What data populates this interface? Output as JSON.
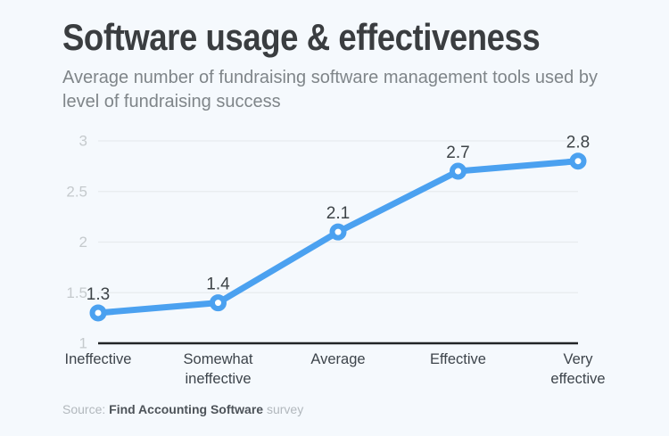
{
  "page": {
    "background": "#f5f9fd"
  },
  "header": {
    "title": "Software usage & effectiveness",
    "subtitle": "Average number of fundraising software management tools used by level of fundraising success"
  },
  "source": {
    "prefix": "Source:",
    "name": "Find Accounting Software",
    "suffix": "survey"
  },
  "chart_data": {
    "type": "line",
    "title": "Software usage & effectiveness",
    "categories": [
      "Ineffective",
      "Somewhat ineffective",
      "Average",
      "Effective",
      "Very effective"
    ],
    "values": [
      1.3,
      1.4,
      2.1,
      2.7,
      2.8
    ],
    "data_labels": [
      "1.3",
      "1.4",
      "2.1",
      "2.7",
      "2.8"
    ],
    "y_ticks": [
      "1",
      "1.5",
      "2",
      "2.5",
      "3"
    ],
    "y_tick_values": [
      1,
      1.5,
      2,
      2.5,
      3
    ],
    "ylim": [
      1,
      3
    ],
    "xlabel": "",
    "ylabel": "",
    "grid": true,
    "legend": false,
    "colors": {
      "line": "#4ba1f0",
      "marker_fill": "#ffffff",
      "grid": "#e7ebee",
      "baseline": "#222527",
      "y_tick_label": "#c5cacd",
      "data_label": "#3d4347",
      "category_label": "#3d444b"
    }
  }
}
